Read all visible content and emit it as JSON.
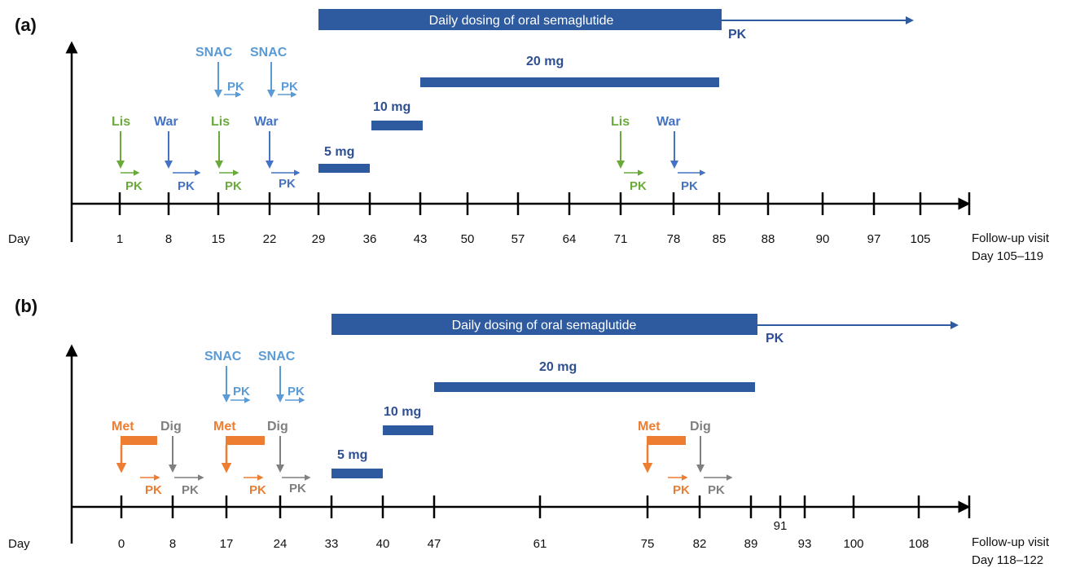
{
  "colors": {
    "bar": "#2e5aa0",
    "axis": "#000000",
    "lis": "#6aaa3a",
    "war": "#4472c4",
    "snac": "#5b9bd5",
    "met": "#ed7d31",
    "dig": "#7f7f7f",
    "dose_text": "#2e4f93"
  },
  "panel_a": {
    "label": "(a)",
    "day_label": "Day",
    "ticks": [
      "1",
      "8",
      "15",
      "22",
      "29",
      "36",
      "43",
      "50",
      "57",
      "64",
      "71",
      "78",
      "85",
      "88",
      "90",
      "97",
      "105"
    ],
    "followup_line1": "Follow-up visit",
    "followup_line2": "Day 105–119",
    "dosing_bar_label": "Daily dosing of oral semaglutide",
    "pk_label": "PK",
    "dose_5": "5 mg",
    "dose_10": "10 mg",
    "dose_20": "20 mg",
    "snac_label": "SNAC",
    "lis_label": "Lis",
    "war_label": "War"
  },
  "panel_b": {
    "label": "(b)",
    "day_label": "Day",
    "ticks": [
      "0",
      "8",
      "17",
      "24",
      "33",
      "40",
      "47",
      "61",
      "75",
      "82",
      "89",
      "91",
      "93",
      "100",
      "108"
    ],
    "followup_line1": "Follow-up visit",
    "followup_line2": "Day 118–122",
    "dosing_bar_label": "Daily dosing of oral semaglutide",
    "pk_label": "PK",
    "dose_5": "5 mg",
    "dose_10": "10 mg",
    "dose_20": "20 mg",
    "snac_label": "SNAC",
    "met_label": "Met",
    "dig_label": "Dig"
  }
}
